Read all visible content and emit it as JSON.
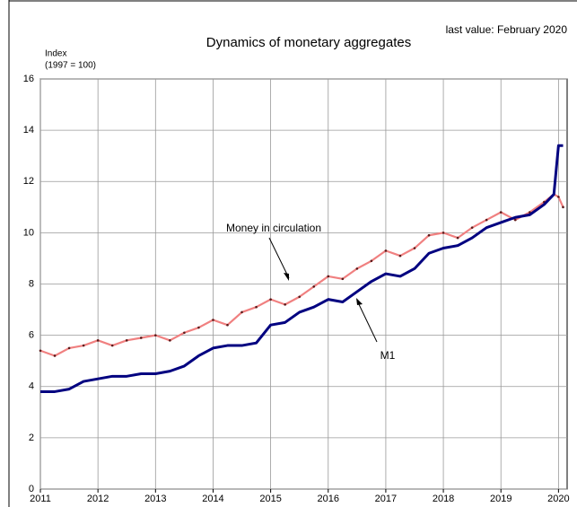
{
  "chart_data": {
    "type": "line",
    "title": "Dynamics of monetary aggregates",
    "subtitle": "last value: February 2020",
    "y_label": "Index",
    "y_label_note": "(1997 = 100)",
    "x": [
      2011,
      2011.25,
      2011.5,
      2011.75,
      2012,
      2012.25,
      2012.5,
      2012.75,
      2013,
      2013.25,
      2013.5,
      2013.75,
      2014,
      2014.25,
      2014.5,
      2014.75,
      2015,
      2015.25,
      2015.5,
      2015.75,
      2016,
      2016.25,
      2016.5,
      2016.75,
      2017,
      2017.25,
      2017.5,
      2017.75,
      2018,
      2018.25,
      2018.5,
      2018.75,
      2019,
      2019.25,
      2019.5,
      2019.75,
      2019.92,
      2020,
      2020.08
    ],
    "series": [
      {
        "name": "Money in circulation",
        "color": "#f08080",
        "marker_color": "#5a1a1a",
        "values": [
          5.4,
          5.2,
          5.5,
          5.6,
          5.8,
          5.6,
          5.8,
          5.9,
          6.0,
          5.8,
          6.1,
          6.3,
          6.6,
          6.4,
          6.9,
          7.1,
          7.4,
          7.2,
          7.5,
          7.9,
          8.3,
          8.2,
          8.6,
          8.9,
          9.3,
          9.1,
          9.4,
          9.9,
          10.0,
          9.8,
          10.2,
          10.5,
          10.8,
          10.5,
          10.8,
          11.2,
          11.5,
          11.4,
          11.0
        ]
      },
      {
        "name": "M1",
        "color": "#000080",
        "values": [
          3.8,
          3.8,
          3.9,
          4.2,
          4.3,
          4.4,
          4.4,
          4.5,
          4.5,
          4.6,
          4.8,
          5.2,
          5.5,
          5.6,
          5.6,
          5.7,
          6.4,
          6.5,
          6.9,
          7.1,
          7.4,
          7.3,
          7.7,
          8.1,
          8.4,
          8.3,
          8.6,
          9.2,
          9.4,
          9.5,
          9.8,
          10.2,
          10.4,
          10.6,
          10.7,
          11.1,
          11.5,
          13.4,
          13.4
        ]
      }
    ],
    "xlim": [
      2011,
      2020.15
    ],
    "xticks": [
      2011,
      2012,
      2013,
      2014,
      2015,
      2016,
      2017,
      2018,
      2019,
      2020
    ],
    "ylim": [
      0,
      16
    ],
    "yticks": [
      0,
      2,
      4,
      6,
      8,
      10,
      12,
      14,
      16
    ],
    "grid": true
  }
}
